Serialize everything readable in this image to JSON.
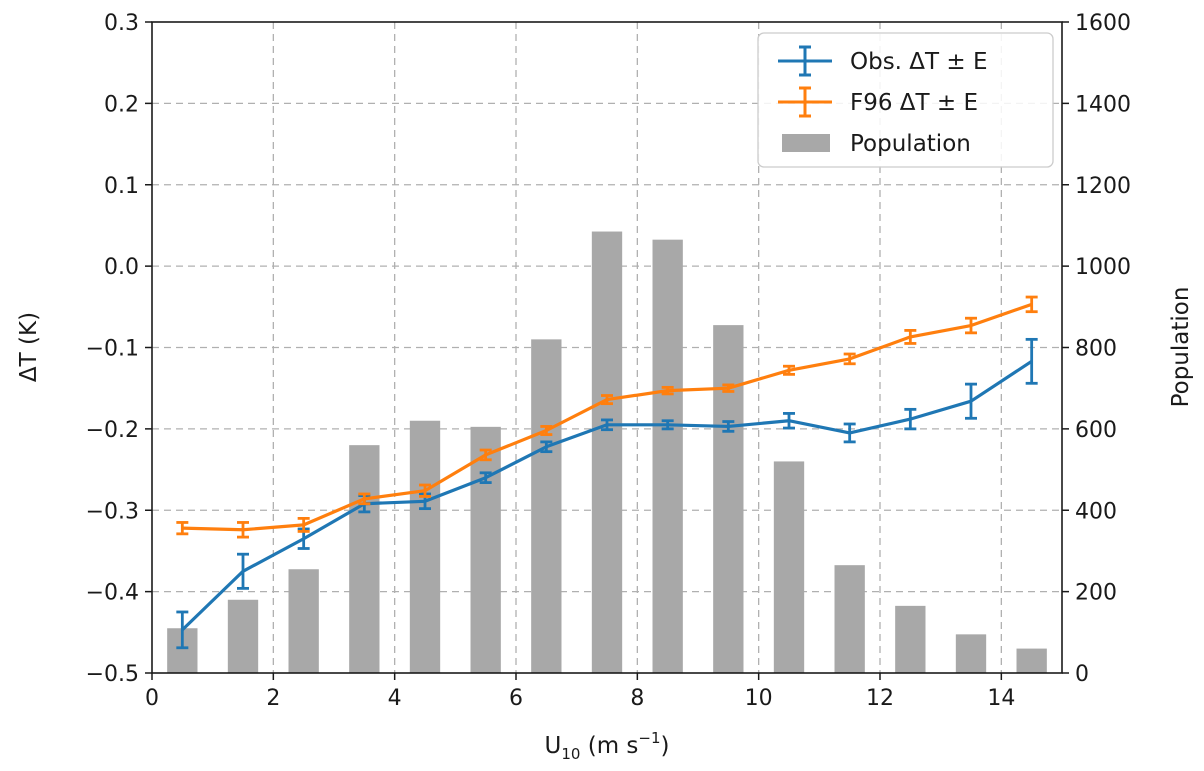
{
  "chart_data": {
    "type": "line",
    "title": "",
    "xlabel": "U",
    "xlabel_sub": "10",
    "xlabel_unit": " (m s",
    "xlabel_unit_exp": "−1",
    "xlabel_unit_close": ")",
    "ylabel_left": "ΔT (K)",
    "ylabel_right": "Population",
    "xlim": [
      0,
      15
    ],
    "ylim_left": [
      -0.5,
      0.3
    ],
    "ylim_right": [
      0,
      1600
    ],
    "grid": true,
    "legend_position": "top-right",
    "x_ticks": [
      0,
      2,
      4,
      6,
      8,
      10,
      12,
      14
    ],
    "x_tick_labels": [
      "0",
      "2",
      "4",
      "6",
      "8",
      "10",
      "12",
      "14"
    ],
    "y_left_ticks": [
      -0.5,
      -0.4,
      -0.3,
      -0.2,
      -0.1,
      0.0,
      0.1,
      0.2,
      0.3
    ],
    "y_left_tick_labels": [
      "−0.5",
      "−0.4",
      "−0.3",
      "−0.2",
      "−0.1",
      "0.0",
      "0.1",
      "0.2",
      "0.3"
    ],
    "y_right_ticks": [
      0,
      200,
      400,
      600,
      800,
      1000,
      1200,
      1400,
      1600
    ],
    "y_right_tick_labels": [
      "0",
      "200",
      "400",
      "600",
      "800",
      "1000",
      "1200",
      "1400",
      "1600"
    ],
    "x": [
      0.5,
      1.5,
      2.5,
      3.5,
      4.5,
      5.5,
      6.5,
      7.5,
      8.5,
      9.5,
      10.5,
      11.5,
      12.5,
      13.5,
      14.5
    ],
    "series": [
      {
        "name": "Obs. ΔT ± E",
        "axis": "left",
        "kind": "line",
        "color": "#1f77b4",
        "values": [
          -0.447,
          -0.375,
          -0.335,
          -0.292,
          -0.289,
          -0.26,
          -0.222,
          -0.195,
          -0.195,
          -0.197,
          -0.19,
          -0.205,
          -0.188,
          -0.166,
          -0.117
        ],
        "errors": [
          0.022,
          0.021,
          0.012,
          0.01,
          0.009,
          0.006,
          0.006,
          0.006,
          0.005,
          0.006,
          0.009,
          0.011,
          0.012,
          0.021,
          0.027
        ]
      },
      {
        "name": "F96 ΔT ± E",
        "axis": "left",
        "kind": "line",
        "color": "#ff7f0e",
        "values": [
          -0.322,
          -0.324,
          -0.318,
          -0.286,
          -0.276,
          -0.232,
          -0.202,
          -0.164,
          -0.153,
          -0.15,
          -0.128,
          -0.114,
          -0.087,
          -0.073,
          -0.047
        ],
        "errors": [
          0.007,
          0.009,
          0.008,
          0.006,
          0.007,
          0.006,
          0.005,
          0.005,
          0.004,
          0.004,
          0.005,
          0.006,
          0.008,
          0.009,
          0.009
        ]
      },
      {
        "name": "Population",
        "axis": "right",
        "kind": "bar",
        "color": "#a8a8a8",
        "values": [
          110,
          180,
          255,
          560,
          620,
          605,
          820,
          1085,
          1065,
          855,
          520,
          265,
          165,
          95,
          60
        ]
      }
    ]
  }
}
